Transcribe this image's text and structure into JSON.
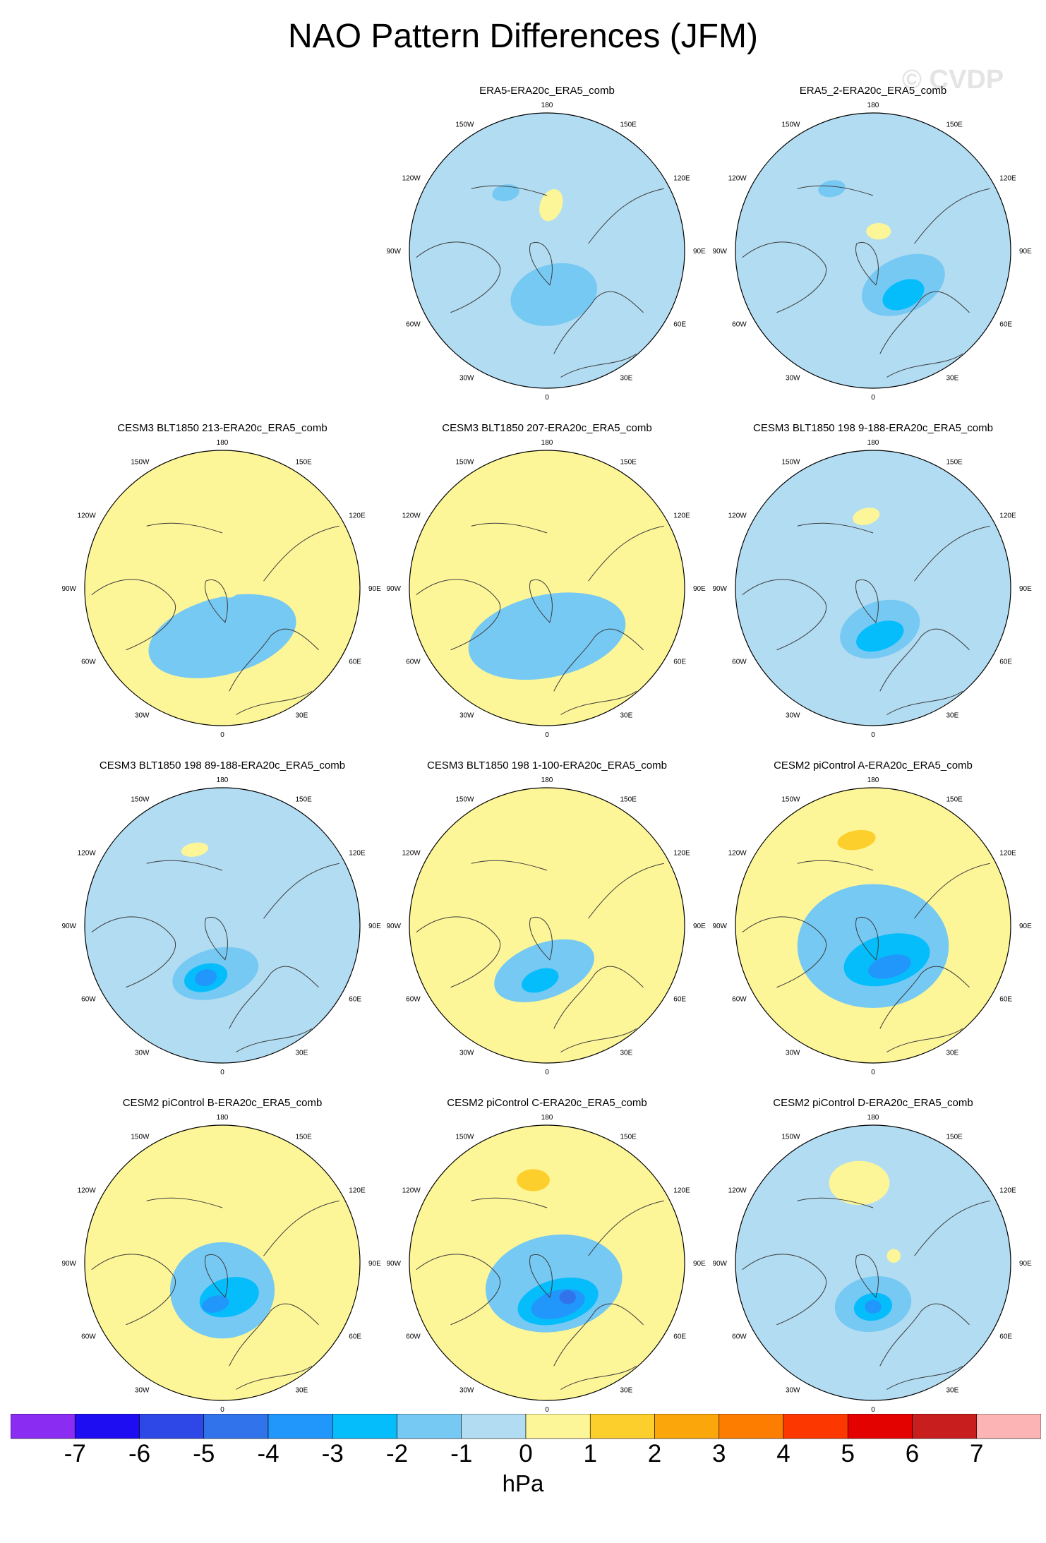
{
  "title": "NAO Pattern Differences (JFM)",
  "watermark": "© CVDP",
  "units": "hPa",
  "colors": {
    "coast": "#3c3c3c",
    "border": "#000000",
    "bins": [
      "#8b2cf2",
      "#1e0cf2",
      "#2d48e6",
      "#3173ea",
      "#2196fb",
      "#06bdfb",
      "#76c9f3",
      "#b2dcf2",
      "#fdf698",
      "#fdcf2c",
      "#fba60a",
      "#fd7d00",
      "#fd3700",
      "#e30200",
      "#c81e1e",
      "#fdb4b4"
    ]
  },
  "colorbar": {
    "boundaries": [
      "-7",
      "-6",
      "-5",
      "-4",
      "-3",
      "-2",
      "-1",
      "0",
      "1",
      "2",
      "3",
      "4",
      "5",
      "6",
      "7"
    ]
  },
  "map_labels": {
    "top": "180",
    "bottom": "0",
    "left": "90W",
    "right": "90E",
    "upper_left": "150W",
    "upper_right": "150E",
    "mid_upper_left": "120W",
    "mid_upper_right": "120E",
    "mid_lower_left": "60W",
    "mid_lower_right": "60E",
    "lower_left": "30W",
    "lower_right": "30E"
  },
  "panels": [
    {
      "title": "ERA5-ERA20c_ERA5_comb",
      "base": "blue",
      "blobs": [
        {
          "dx": 0.05,
          "dy": 0.32,
          "rx": 0.32,
          "ry": 0.22,
          "rot": -15,
          "level": -1,
          "lon": -38,
          "lat": 55
        },
        {
          "dx": -0.3,
          "dy": -0.42,
          "rx": 0.1,
          "ry": 0.06,
          "rot": -10,
          "level": -1
        },
        {
          "dx": 0.03,
          "dy": -0.33,
          "rx": 0.08,
          "ry": 0.12,
          "rot": 20,
          "level": 1
        }
      ]
    },
    {
      "title": "ERA5_2-ERA20c_ERA5_comb",
      "base": "blue",
      "blobs": [
        {
          "dx": 0.22,
          "dy": 0.25,
          "rx": 0.32,
          "ry": 0.2,
          "rot": -25,
          "level": -1
        },
        {
          "dx": 0.22,
          "dy": 0.32,
          "rx": 0.16,
          "ry": 0.1,
          "rot": -25,
          "level": -2
        },
        {
          "dx": -0.3,
          "dy": -0.45,
          "rx": 0.1,
          "ry": 0.06,
          "rot": -10,
          "level": -1
        },
        {
          "dx": 0.04,
          "dy": -0.14,
          "rx": 0.09,
          "ry": 0.06,
          "rot": 0,
          "level": 1
        }
      ]
    },
    {
      "title": "CESM3 BLT1850 213-ERA20c_ERA5_comb",
      "base": "yellow",
      "blobs": [
        {
          "dx": 0.0,
          "dy": 0.35,
          "rx": 0.55,
          "ry": 0.28,
          "rot": -15,
          "level": -1
        },
        {
          "dx": -0.1,
          "dy": 0.32,
          "rx": 0.16,
          "ry": 0.07,
          "rot": -20,
          "level": -1
        },
        {
          "dx": 0.05,
          "dy": 0.0,
          "rx": 0.07,
          "ry": 0.07,
          "rot": 0,
          "level": 1
        }
      ]
    },
    {
      "title": "CESM3 BLT1850 207-ERA20c_ERA5_comb",
      "base": "yellow",
      "blobs": [
        {
          "dx": 0.0,
          "dy": 0.35,
          "rx": 0.58,
          "ry": 0.3,
          "rot": -12,
          "level": -1
        },
        {
          "dx": -0.05,
          "dy": 0.38,
          "rx": 0.3,
          "ry": 0.12,
          "rot": -15,
          "level": -1
        },
        {
          "dx": -0.28,
          "dy": -0.1,
          "rx": 0.1,
          "ry": 0.06,
          "rot": 0,
          "level": 1
        },
        {
          "dx": 0.05,
          "dy": -0.05,
          "rx": 0.1,
          "ry": 0.08,
          "rot": 0,
          "level": 1
        }
      ]
    },
    {
      "title": "CESM3 BLT1850 198 9-188-ERA20c_ERA5_comb",
      "base": "blue",
      "blobs": [
        {
          "dx": 0.05,
          "dy": 0.3,
          "rx": 0.3,
          "ry": 0.2,
          "rot": -20,
          "level": -1
        },
        {
          "dx": 0.05,
          "dy": 0.35,
          "rx": 0.18,
          "ry": 0.1,
          "rot": -20,
          "level": -2
        },
        {
          "dx": -0.05,
          "dy": -0.55,
          "rx": 0.3,
          "ry": 0.25,
          "rot": 0,
          "level": 0
        },
        {
          "dx": -0.05,
          "dy": -0.52,
          "rx": 0.1,
          "ry": 0.06,
          "rot": -15,
          "level": 1
        }
      ]
    },
    {
      "title": "CESM3 BLT1850 198 89-188-ERA20c_ERA5_comb",
      "base": "blue",
      "blobs": [
        {
          "dx": -0.05,
          "dy": 0.35,
          "rx": 0.32,
          "ry": 0.18,
          "rot": -15,
          "level": -1
        },
        {
          "dx": -0.12,
          "dy": 0.38,
          "rx": 0.16,
          "ry": 0.1,
          "rot": -15,
          "level": -2
        },
        {
          "dx": -0.12,
          "dy": 0.38,
          "rx": 0.08,
          "ry": 0.06,
          "rot": -15,
          "level": -3
        },
        {
          "dx": -0.2,
          "dy": -0.55,
          "rx": 0.1,
          "ry": 0.05,
          "rot": -10,
          "level": 1
        }
      ]
    },
    {
      "title": "CESM3 BLT1850 198 1-100-ERA20c_ERA5_comb",
      "base": "yellow",
      "blobs": [
        {
          "dx": -0.02,
          "dy": 0.33,
          "rx": 0.38,
          "ry": 0.2,
          "rot": -20,
          "level": -1
        },
        {
          "dx": -0.05,
          "dy": 0.4,
          "rx": 0.14,
          "ry": 0.08,
          "rot": -20,
          "level": -2
        },
        {
          "dx": -0.05,
          "dy": -0.48,
          "rx": 0.1,
          "ry": 0.05,
          "rot": -15,
          "level": 1
        }
      ]
    },
    {
      "title": "CESM2 piControl A-ERA20c_ERA5_comb",
      "base": "yellow",
      "blobs": [
        {
          "dx": 0.0,
          "dy": 0.15,
          "rx": 0.55,
          "ry": 0.45,
          "rot": 0,
          "level": -1
        },
        {
          "dx": 0.1,
          "dy": 0.25,
          "rx": 0.32,
          "ry": 0.18,
          "rot": -15,
          "level": -2
        },
        {
          "dx": 0.12,
          "dy": 0.3,
          "rx": 0.16,
          "ry": 0.08,
          "rot": -15,
          "level": -3
        },
        {
          "dx": -0.15,
          "dy": -0.58,
          "rx": 0.3,
          "ry": 0.16,
          "rot": -10,
          "level": 1
        },
        {
          "dx": -0.12,
          "dy": -0.62,
          "rx": 0.14,
          "ry": 0.07,
          "rot": -10,
          "level": 2
        }
      ]
    },
    {
      "title": "CESM2 piControl B-ERA20c_ERA5_comb",
      "base": "yellow",
      "blobs": [
        {
          "dx": 0.0,
          "dy": 0.2,
          "rx": 0.38,
          "ry": 0.35,
          "rot": 0,
          "level": -1
        },
        {
          "dx": 0.05,
          "dy": 0.25,
          "rx": 0.22,
          "ry": 0.14,
          "rot": -15,
          "level": -2
        },
        {
          "dx": -0.05,
          "dy": 0.3,
          "rx": 0.1,
          "ry": 0.06,
          "rot": -15,
          "level": -3
        }
      ]
    },
    {
      "title": "CESM2 piControl C-ERA20c_ERA5_comb",
      "base": "yellow",
      "blobs": [
        {
          "dx": 0.05,
          "dy": 0.15,
          "rx": 0.5,
          "ry": 0.35,
          "rot": -10,
          "level": -1
        },
        {
          "dx": 0.08,
          "dy": 0.28,
          "rx": 0.3,
          "ry": 0.16,
          "rot": -15,
          "level": -2
        },
        {
          "dx": 0.08,
          "dy": 0.3,
          "rx": 0.2,
          "ry": 0.1,
          "rot": -15,
          "level": -3
        },
        {
          "dx": 0.15,
          "dy": 0.25,
          "rx": 0.06,
          "ry": 0.05,
          "rot": 0,
          "level": -4
        },
        {
          "dx": -0.12,
          "dy": -0.58,
          "rx": 0.28,
          "ry": 0.18,
          "rot": 0,
          "level": 1
        },
        {
          "dx": -0.1,
          "dy": -0.6,
          "rx": 0.12,
          "ry": 0.08,
          "rot": 0,
          "level": 2
        }
      ]
    },
    {
      "title": "CESM2 piControl D-ERA20c_ERA5_comb",
      "base": "blue",
      "blobs": [
        {
          "dx": 0.0,
          "dy": 0.3,
          "rx": 0.28,
          "ry": 0.2,
          "rot": -10,
          "level": -1
        },
        {
          "dx": 0.0,
          "dy": 0.32,
          "rx": 0.14,
          "ry": 0.1,
          "rot": -10,
          "level": -2
        },
        {
          "dx": 0.0,
          "dy": 0.32,
          "rx": 0.06,
          "ry": 0.05,
          "rot": 0,
          "level": -3
        },
        {
          "dx": -0.1,
          "dy": -0.58,
          "rx": 0.22,
          "ry": 0.16,
          "rot": 0,
          "level": 1
        },
        {
          "dx": 0.15,
          "dy": -0.05,
          "rx": 0.05,
          "ry": 0.05,
          "rot": 0,
          "level": 1
        }
      ]
    }
  ]
}
